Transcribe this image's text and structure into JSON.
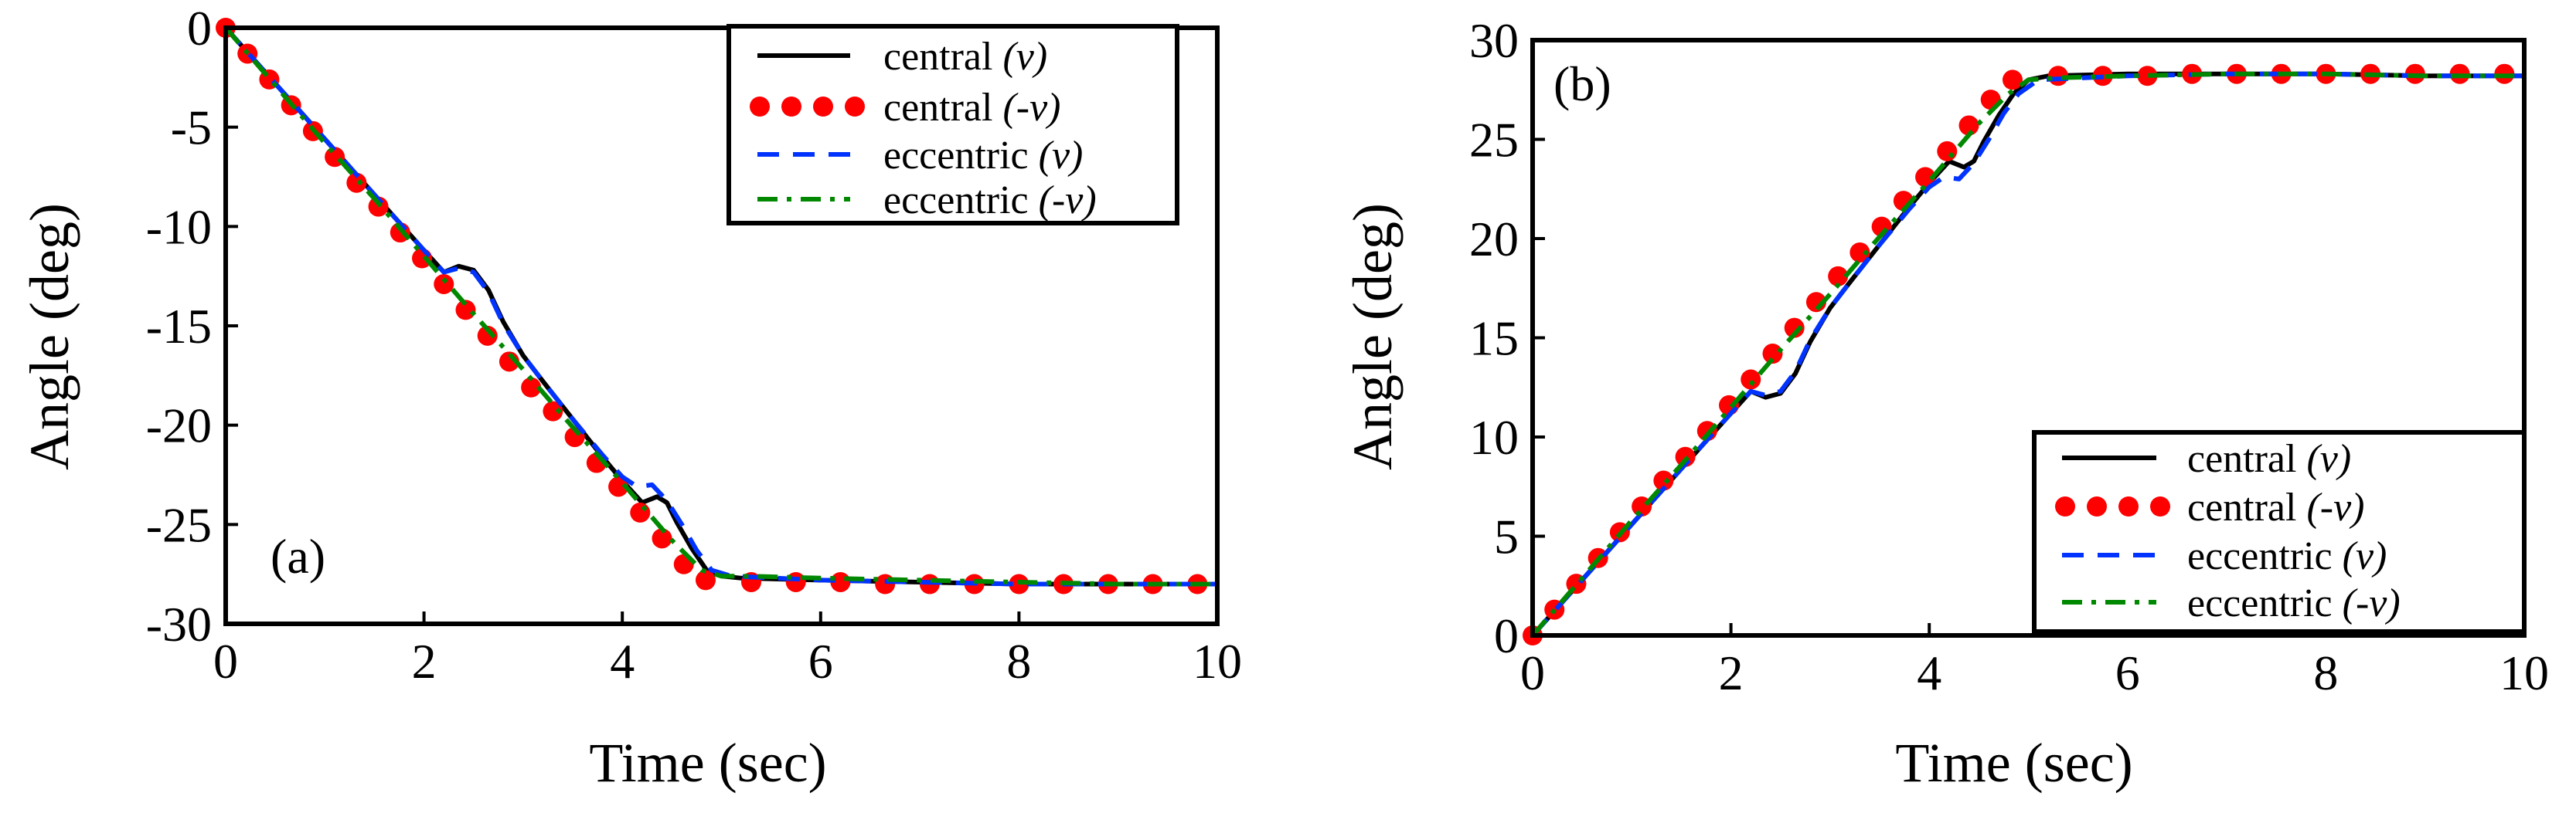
{
  "chart_data": [
    {
      "type": "line",
      "panel_label": "(a)",
      "xlabel": "Time (sec)",
      "ylabel": "Angle (deg)",
      "xlim": [
        0,
        10
      ],
      "ylim": [
        -30,
        0
      ],
      "x_ticks": [
        0,
        2,
        4,
        6,
        8,
        10
      ],
      "y_ticks": [
        0,
        -5,
        -10,
        -15,
        -20,
        -25,
        -30
      ],
      "legend_position": "top-right",
      "series": [
        {
          "name": "central",
          "var": "(v)",
          "style": "solid",
          "color": "#000000",
          "x": [
            0,
            0.5,
            1,
            1.5,
            2,
            2.2,
            2.35,
            2.5,
            2.65,
            2.8,
            3.0,
            3.2,
            3.5,
            3.8,
            4.0,
            4.2,
            4.35,
            4.45,
            4.55,
            4.7,
            4.85,
            5.0,
            5.2,
            6,
            7,
            8,
            9,
            10
          ],
          "y": [
            0,
            -2.8,
            -5.6,
            -8.4,
            -11.2,
            -12.3,
            -12.0,
            -12.2,
            -13.2,
            -14.8,
            -16.5,
            -17.8,
            -19.7,
            -21.6,
            -22.8,
            -23.9,
            -23.6,
            -23.9,
            -24.9,
            -26.2,
            -27.3,
            -27.6,
            -27.7,
            -27.8,
            -27.9,
            -28.0,
            -28.0,
            -28.0
          ]
        },
        {
          "name": "central",
          "var": "(-v)",
          "style": "dotted",
          "color": "#ff0000",
          "x": [
            0,
            0.22,
            0.44,
            0.66,
            0.88,
            1.1,
            1.32,
            1.54,
            1.76,
            1.98,
            2.2,
            2.42,
            2.64,
            2.86,
            3.08,
            3.3,
            3.52,
            3.74,
            3.96,
            4.18,
            4.4,
            4.62,
            4.84,
            5.3,
            5.75,
            6.2,
            6.65,
            7.1,
            7.55,
            8.0,
            8.45,
            8.9,
            9.35,
            9.8
          ],
          "y": [
            0,
            -1.3,
            -2.6,
            -3.9,
            -5.2,
            -6.5,
            -7.8,
            -9.0,
            -10.3,
            -11.6,
            -12.9,
            -14.2,
            -15.5,
            -16.8,
            -18.1,
            -19.3,
            -20.6,
            -21.9,
            -23.1,
            -24.4,
            -25.7,
            -27.0,
            -27.8,
            -27.9,
            -27.9,
            -27.9,
            -28.0,
            -28.0,
            -28.0,
            -28.0,
            -28.0,
            -28.0,
            -28.0,
            -28.0
          ]
        },
        {
          "name": "eccentric",
          "var": "(v)",
          "style": "dashed",
          "color": "#0033ff",
          "x": [
            0,
            0.5,
            1,
            1.5,
            2,
            2.2,
            2.35,
            2.5,
            2.65,
            2.8,
            3.0,
            3.2,
            3.5,
            3.8,
            4.0,
            4.15,
            4.3,
            4.45,
            4.6,
            4.75,
            4.9,
            5.1,
            6,
            7,
            8,
            9,
            10
          ],
          "y": [
            0,
            -2.8,
            -5.6,
            -8.4,
            -11.2,
            -12.3,
            -12.1,
            -12.3,
            -13.3,
            -14.9,
            -16.5,
            -17.8,
            -19.7,
            -21.5,
            -22.6,
            -23.1,
            -23.0,
            -23.8,
            -25.0,
            -26.3,
            -27.3,
            -27.6,
            -27.8,
            -27.9,
            -28.0,
            -28.0,
            -28.0
          ]
        },
        {
          "name": "eccentric",
          "var": "(-v)",
          "style": "dashdot",
          "color": "#008800",
          "x": [
            0,
            0.5,
            1,
            1.5,
            2,
            2.5,
            3,
            3.5,
            4,
            4.5,
            4.8,
            5.0,
            5.3,
            6,
            7,
            8,
            9,
            10
          ],
          "y": [
            0,
            -2.9,
            -5.8,
            -8.6,
            -11.5,
            -14.4,
            -17.2,
            -20.1,
            -22.9,
            -25.8,
            -27.3,
            -27.6,
            -27.6,
            -27.7,
            -27.8,
            -27.9,
            -28.0,
            -28.0
          ]
        }
      ]
    },
    {
      "type": "line",
      "panel_label": "(b)",
      "xlabel": "Time (sec)",
      "ylabel": "Angle (deg)",
      "xlim": [
        0,
        10
      ],
      "ylim": [
        0,
        30
      ],
      "x_ticks": [
        0,
        2,
        4,
        6,
        8,
        10
      ],
      "y_ticks": [
        0,
        5,
        10,
        15,
        20,
        25,
        30
      ],
      "legend_position": "bottom-right",
      "series": [
        {
          "name": "central",
          "var": "(v)",
          "style": "solid",
          "color": "#000000",
          "x": [
            0,
            0.5,
            1,
            1.5,
            2,
            2.2,
            2.35,
            2.5,
            2.65,
            2.8,
            3.0,
            3.2,
            3.5,
            3.8,
            4.0,
            4.2,
            4.35,
            4.45,
            4.55,
            4.7,
            4.85,
            5.0,
            5.2,
            6,
            7,
            8,
            9,
            10
          ],
          "y": [
            0,
            2.8,
            5.6,
            8.4,
            11.2,
            12.3,
            12.0,
            12.2,
            13.2,
            14.8,
            16.5,
            17.8,
            19.7,
            21.6,
            22.8,
            23.9,
            23.6,
            23.9,
            24.9,
            26.2,
            27.3,
            28.0,
            28.2,
            28.3,
            28.3,
            28.3,
            28.2,
            28.2
          ]
        },
        {
          "name": "central",
          "var": "(-v)",
          "style": "dotted",
          "color": "#ff0000",
          "x": [
            0,
            0.22,
            0.44,
            0.66,
            0.88,
            1.1,
            1.32,
            1.54,
            1.76,
            1.98,
            2.2,
            2.42,
            2.64,
            2.86,
            3.08,
            3.3,
            3.52,
            3.74,
            3.96,
            4.18,
            4.4,
            4.62,
            4.84,
            5.3,
            5.75,
            6.2,
            6.65,
            7.1,
            7.55,
            8.0,
            8.45,
            8.9,
            9.35,
            9.8
          ],
          "y": [
            0,
            1.3,
            2.6,
            3.9,
            5.2,
            6.5,
            7.8,
            9.0,
            10.3,
            11.6,
            12.9,
            14.2,
            15.5,
            16.8,
            18.1,
            19.3,
            20.6,
            21.9,
            23.1,
            24.4,
            25.7,
            27.0,
            28.0,
            28.2,
            28.2,
            28.2,
            28.3,
            28.3,
            28.3,
            28.3,
            28.3,
            28.3,
            28.3,
            28.3
          ]
        },
        {
          "name": "eccentric",
          "var": "(v)",
          "style": "dashed",
          "color": "#0033ff",
          "x": [
            0,
            0.5,
            1,
            1.5,
            2,
            2.2,
            2.35,
            2.5,
            2.65,
            2.8,
            3.0,
            3.2,
            3.5,
            3.8,
            4.0,
            4.15,
            4.3,
            4.45,
            4.6,
            4.75,
            4.9,
            5.1,
            6,
            7,
            8,
            9,
            10
          ],
          "y": [
            0,
            2.8,
            5.6,
            8.4,
            11.2,
            12.3,
            12.1,
            12.3,
            13.3,
            14.9,
            16.5,
            17.8,
            19.7,
            21.5,
            22.6,
            23.1,
            23.0,
            23.8,
            25.0,
            26.3,
            27.3,
            28.0,
            28.2,
            28.3,
            28.3,
            28.2,
            28.2
          ]
        },
        {
          "name": "eccentric",
          "var": "(-v)",
          "style": "dashdot",
          "color": "#008800",
          "x": [
            0,
            0.5,
            1,
            1.5,
            2,
            2.5,
            3,
            3.5,
            4,
            4.5,
            4.8,
            5.0,
            5.3,
            6,
            7,
            8,
            9,
            10
          ],
          "y": [
            0,
            2.9,
            5.8,
            8.6,
            11.5,
            14.4,
            17.2,
            20.1,
            22.9,
            25.8,
            27.3,
            28.0,
            28.1,
            28.2,
            28.3,
            28.3,
            28.2,
            28.2
          ]
        }
      ]
    }
  ]
}
